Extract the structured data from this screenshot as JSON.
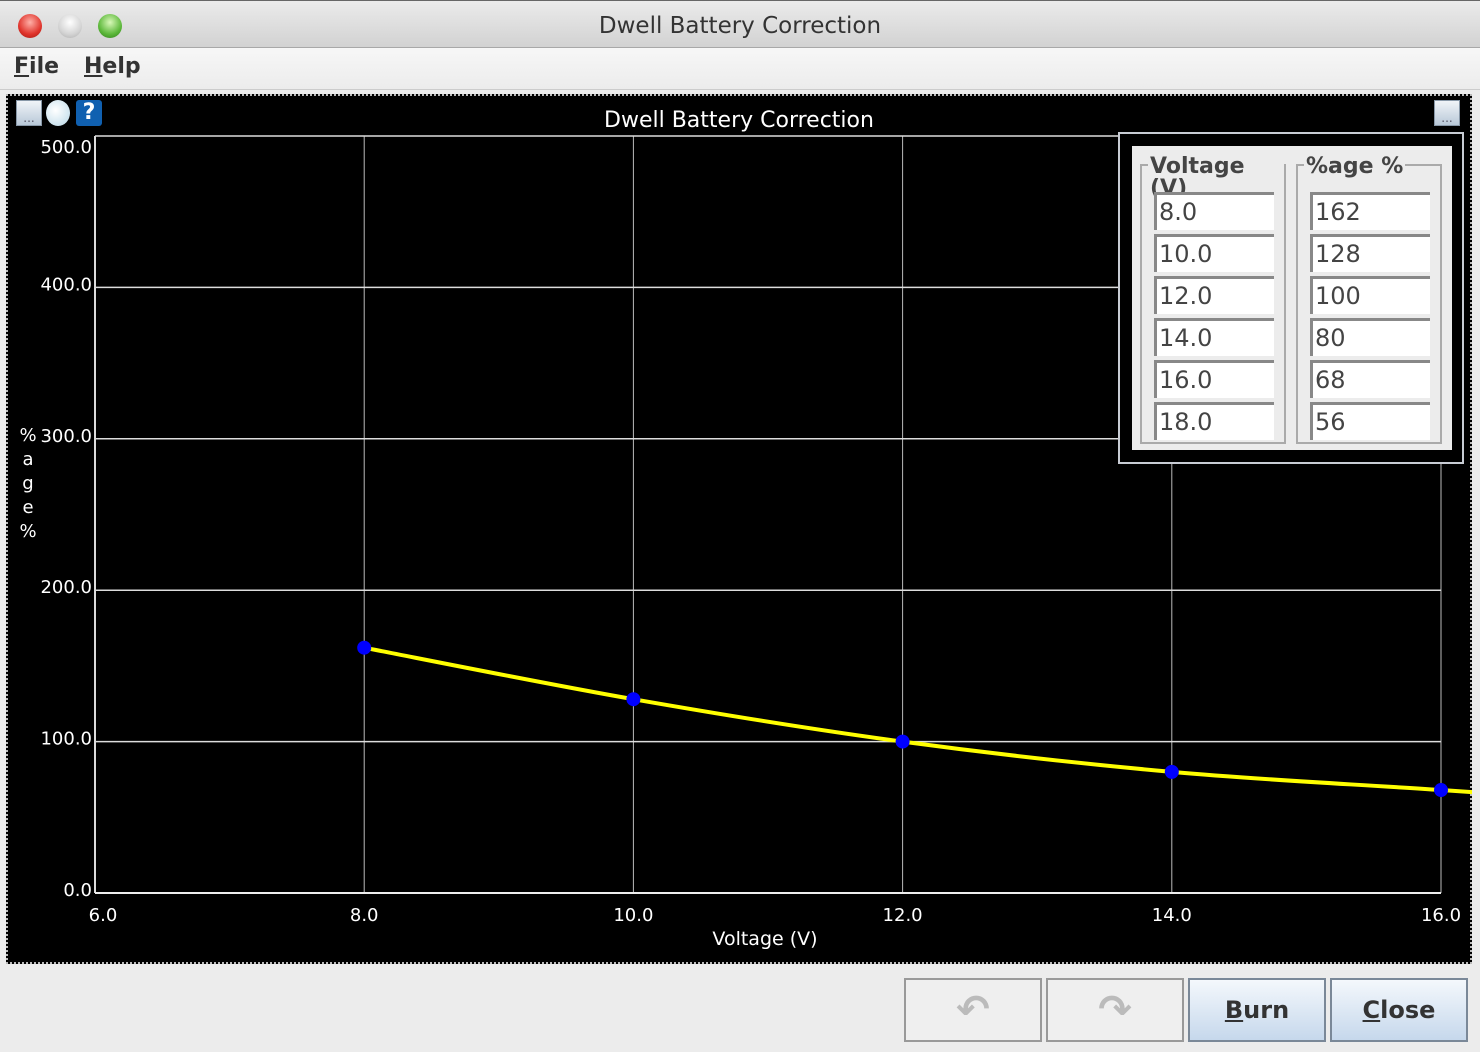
{
  "window": {
    "title": "Dwell Battery Correction"
  },
  "menu": [
    {
      "label": "File",
      "mnemonic": "F",
      "rest": "ile"
    },
    {
      "label": "Help",
      "mnemonic": "H",
      "rest": "elp"
    }
  ],
  "toolbar": {
    "left_icons": [
      "more-options-icon",
      "edit-note-icon",
      "help-icon"
    ],
    "right_icon": "more-options-icon"
  },
  "chart_data": {
    "type": "line",
    "title": "Dwell Battery Correction",
    "xlabel": "Voltage (V)",
    "ylabel": "%age %",
    "xlim": [
      6.0,
      16.0
    ],
    "ylim": [
      0.0,
      500.0
    ],
    "xticks": [
      "6.0",
      "8.0",
      "10.0",
      "12.0",
      "14.0",
      "16.0"
    ],
    "yticks": [
      "0.0",
      "100.0",
      "200.0",
      "300.0",
      "400.0",
      "500.0"
    ],
    "x": [
      8.0,
      10.0,
      12.0,
      14.0,
      16.0,
      18.0
    ],
    "y": [
      162,
      128,
      100,
      80,
      68,
      56
    ],
    "grid": true,
    "line_color": "#ffff00",
    "point_color": "#0000ff"
  },
  "table": {
    "columns": [
      {
        "header": "Voltage (V)",
        "values": [
          "8.0",
          "10.0",
          "12.0",
          "14.0",
          "16.0",
          "18.0"
        ]
      },
      {
        "header": "%age %",
        "values": [
          "162",
          "128",
          "100",
          "80",
          "68",
          "56"
        ]
      }
    ]
  },
  "buttons": {
    "undo": "undo-icon",
    "redo": "redo-icon",
    "burn": {
      "label": "Burn",
      "mnemonic": "B",
      "rest": "urn"
    },
    "close": {
      "label": "Close",
      "mnemonic": "C",
      "rest": "lose"
    }
  }
}
